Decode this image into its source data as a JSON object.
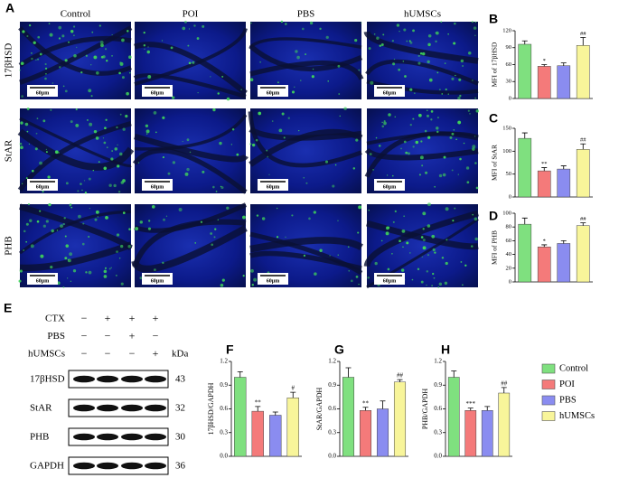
{
  "figure": {
    "panel_a": {
      "label": "A",
      "columns": [
        "Control",
        "POI",
        "PBS",
        "hUMSCs"
      ],
      "rows": [
        "17βHSD",
        "StAR",
        "PHB"
      ],
      "scale_bar": "60μm"
    },
    "panel_e": {
      "label": "E",
      "unit": "kDa",
      "treatments": [
        {
          "name": "CTX",
          "signs": [
            "−",
            "+",
            "+",
            "+"
          ]
        },
        {
          "name": "PBS",
          "signs": [
            "−",
            "−",
            "+",
            "−"
          ]
        },
        {
          "name": "hUMSCs",
          "signs": [
            "−",
            "−",
            "−",
            "+"
          ]
        }
      ],
      "bands": [
        {
          "name": "17βHSD",
          "kda": 43
        },
        {
          "name": "StAR",
          "kda": 32
        },
        {
          "name": "PHB",
          "kda": 30
        },
        {
          "name": "GAPDH",
          "kda": 36
        }
      ]
    }
  },
  "legend": [
    {
      "name": "Control",
      "color": "#7fe07f"
    },
    {
      "name": "POI",
      "color": "#f47a7a"
    },
    {
      "name": "PBS",
      "color": "#8a8cf0"
    },
    {
      "name": "hUMSCs",
      "color": "#f8f59a"
    }
  ],
  "chart_data": [
    {
      "type": "bar",
      "panel": "B",
      "ylabel": "MFI of 17βHSD",
      "ylim": [
        0,
        120
      ],
      "yticks": [
        0,
        30,
        60,
        90,
        120
      ],
      "values": [
        96,
        57,
        58,
        94
      ],
      "errors": [
        6,
        3,
        5,
        14
      ],
      "annotations": [
        null,
        "*",
        null,
        "##"
      ]
    },
    {
      "type": "bar",
      "panel": "C",
      "ylabel": "MFI of StAR",
      "ylim": [
        0,
        150
      ],
      "yticks": [
        0,
        50,
        100,
        150
      ],
      "values": [
        128,
        57,
        61,
        104
      ],
      "errors": [
        12,
        7,
        7,
        12
      ],
      "annotations": [
        null,
        "**",
        null,
        "##"
      ]
    },
    {
      "type": "bar",
      "panel": "D",
      "ylabel": "MFI of PHB",
      "ylim": [
        0,
        100
      ],
      "yticks": [
        0,
        20,
        40,
        60,
        80,
        100
      ],
      "values": [
        84,
        51,
        56,
        82
      ],
      "errors": [
        9,
        3,
        4,
        4
      ],
      "annotations": [
        null,
        "*",
        null,
        "##"
      ]
    },
    {
      "type": "bar",
      "panel": "F",
      "ylabel": "17βHSD/GAPDH",
      "ylim": [
        0,
        1.2
      ],
      "yticks": [
        {
          "value": 0,
          "label": "0.0"
        },
        0.3,
        0.6,
        0.9,
        1.2
      ],
      "values": [
        1.0,
        0.57,
        0.52,
        0.74
      ],
      "errors": [
        0.07,
        0.06,
        0.04,
        0.07
      ],
      "annotations": [
        null,
        "**",
        null,
        "#"
      ]
    },
    {
      "type": "bar",
      "panel": "G",
      "ylabel": "StAR/GAPDH",
      "ylim": [
        0,
        1.2
      ],
      "yticks": [
        {
          "value": 0,
          "label": "0.0"
        },
        0.3,
        0.6,
        0.9,
        1.2
      ],
      "values": [
        1.0,
        0.58,
        0.6,
        0.94
      ],
      "errors": [
        0.12,
        0.04,
        0.1,
        0.03
      ],
      "annotations": [
        null,
        "**",
        null,
        "##"
      ]
    },
    {
      "type": "bar",
      "panel": "H",
      "ylabel": "PHB/GAPDH",
      "ylim": [
        0,
        1.2
      ],
      "yticks": [
        {
          "value": 0,
          "label": "0.0"
        },
        0.3,
        0.6,
        0.9,
        1.2
      ],
      "values": [
        1.0,
        0.58,
        0.58,
        0.8
      ],
      "errors": [
        0.08,
        0.03,
        0.05,
        0.07
      ],
      "annotations": [
        null,
        "***",
        null,
        "##"
      ]
    }
  ]
}
